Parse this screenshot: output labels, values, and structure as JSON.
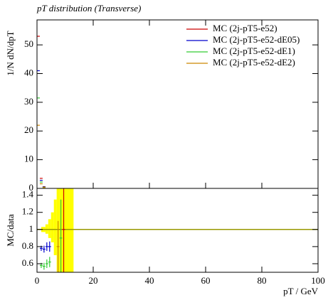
{
  "chart_data": {
    "type": "step",
    "title": "pT distribution (Transverse)",
    "y_label": "1/N dN/dpT",
    "x_label": "pT / GeV",
    "ratio_label": "MC/data",
    "xlim": [
      0,
      100
    ],
    "xticks": [
      0,
      20,
      40,
      60,
      80,
      100
    ],
    "ylim": [
      0,
      58.7
    ],
    "yticks": [
      0,
      10,
      20,
      30,
      40,
      50
    ],
    "ratio_ylim": [
      0.5,
      1.48
    ],
    "ratio_yticks": [
      0.6,
      0.8,
      1,
      1.2,
      1.4
    ],
    "ratio_reference": 1,
    "ratio_reference_color": "#999900",
    "band": {
      "color": "#ffff00",
      "edges": [
        1.5,
        3,
        4,
        5,
        6,
        7,
        8,
        13
      ],
      "lo": [
        0.97,
        0.95,
        0.9,
        0.85,
        0.7,
        0.5,
        0.5
      ],
      "hi": [
        1.03,
        1.06,
        1.12,
        1.2,
        1.35,
        1.5,
        1.5
      ]
    },
    "legend": "upper right",
    "series": [
      {
        "name": "MC (2j-pT5-e52)",
        "color": "#cc0000",
        "x": [
          0.5,
          1.5,
          2.5
        ],
        "values": [
          53,
          3.5,
          0.6
        ],
        "ratio_x": [
          9.5
        ],
        "ratio": [
          1.0
        ],
        "ratio_err": [
          0.5
        ]
      },
      {
        "name": "MC (2j-pT5-e52-dE05)",
        "color": "#0000cc",
        "x": [
          0.5,
          1.5,
          2.5
        ],
        "values": [
          41,
          2.8,
          0.5
        ],
        "ratio_x": [
          1.5,
          2.5,
          3.5,
          4.5
        ],
        "ratio": [
          0.78,
          0.77,
          0.8,
          0.8
        ],
        "ratio_err": [
          0.03,
          0.04,
          0.05,
          0.06
        ]
      },
      {
        "name": "MC (2j-pT5-e52-dE1)",
        "color": "#33cc33",
        "x": [
          0.5,
          1.5,
          2.5
        ],
        "values": [
          31.5,
          2.2,
          0.4
        ],
        "ratio_x": [
          1.5,
          2.5,
          3.5,
          4.5,
          8.5
        ],
        "ratio": [
          0.58,
          0.57,
          0.6,
          0.62,
          0.9
        ],
        "ratio_err": [
          0.03,
          0.04,
          0.05,
          0.06,
          0.45
        ]
      },
      {
        "name": "MC (2j-pT5-e52-dE2)",
        "color": "#cc8800",
        "x": [
          0.5,
          1.5,
          2.5
        ],
        "values": [
          22,
          1.6,
          0.3
        ],
        "ratio_x": [
          7.5
        ],
        "ratio": [
          0.8
        ],
        "ratio_err": [
          0.3
        ]
      }
    ]
  }
}
